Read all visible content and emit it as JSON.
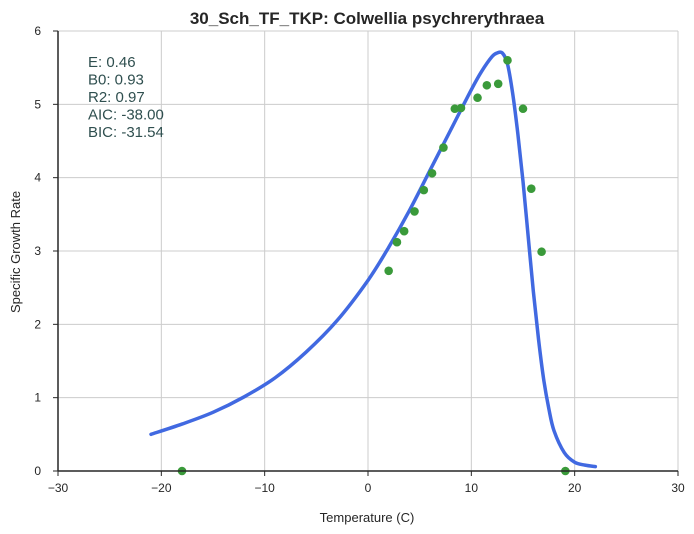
{
  "chart_data": {
    "type": "scatter",
    "title": "30_Sch_TF_TKP: Colwellia psychrerythraea",
    "xlabel": "Temperature (C)",
    "ylabel": "Specific Growth Rate",
    "xlim": [
      -30,
      30
    ],
    "ylim": [
      0,
      6
    ],
    "xticks": [
      -30,
      -20,
      -10,
      0,
      10,
      20,
      30
    ],
    "yticks": [
      0,
      1,
      2,
      3,
      4,
      5,
      6
    ],
    "grid": true,
    "annotations": [
      "E:  0.46",
      "B0:  0.93",
      "R2:  0.97",
      "AIC: -38.00",
      "BIC: -31.54"
    ],
    "point_color": "#3a9a3a",
    "line_color": "#4169e1",
    "points": {
      "x": [
        -18.0,
        2.0,
        2.8,
        3.5,
        4.5,
        5.4,
        6.2,
        7.3,
        8.4,
        9.0,
        10.6,
        11.5,
        12.6,
        13.5,
        15.0,
        15.8,
        16.8,
        19.1
      ],
      "y": [
        0.0,
        2.73,
        3.12,
        3.27,
        3.54,
        3.83,
        4.06,
        4.41,
        4.94,
        4.95,
        5.09,
        5.26,
        5.28,
        5.6,
        4.94,
        3.85,
        2.99,
        0.0
      ]
    },
    "fit_curve": {
      "x": [
        -21,
        -18,
        -15,
        -12,
        -9,
        -6,
        -3,
        0,
        2,
        4,
        6,
        8,
        10,
        11,
        12,
        12.5,
        13,
        13.5,
        14,
        14.5,
        15,
        15.5,
        16,
        16.5,
        17,
        17.5,
        18,
        19,
        20,
        21,
        22
      ],
      "y": [
        0.5,
        0.64,
        0.8,
        1.01,
        1.27,
        1.62,
        2.05,
        2.6,
        3.05,
        3.55,
        4.1,
        4.65,
        5.2,
        5.45,
        5.65,
        5.7,
        5.7,
        5.55,
        5.15,
        4.6,
        3.95,
        3.2,
        2.45,
        1.8,
        1.25,
        0.85,
        0.55,
        0.25,
        0.12,
        0.08,
        0.06
      ]
    }
  }
}
